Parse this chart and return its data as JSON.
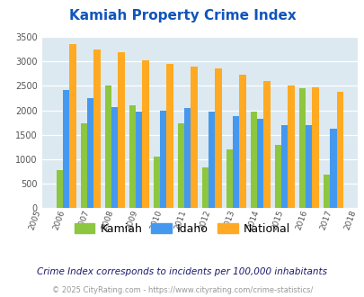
{
  "title": "Kamiah Property Crime Index",
  "years": [
    2005,
    2006,
    2007,
    2008,
    2009,
    2010,
    2011,
    2012,
    2013,
    2014,
    2015,
    2016,
    2017,
    2018
  ],
  "kamiah": [
    null,
    775,
    1725,
    2500,
    2100,
    1050,
    1725,
    825,
    1200,
    1975,
    1300,
    2450,
    680,
    null
  ],
  "idaho": [
    null,
    2425,
    2250,
    2075,
    1975,
    2000,
    2050,
    1975,
    1875,
    1825,
    1700,
    1700,
    1625,
    null
  ],
  "national": [
    null,
    3350,
    3250,
    3200,
    3025,
    2950,
    2900,
    2850,
    2725,
    2600,
    2500,
    2475,
    2375,
    null
  ],
  "kamiah_color": "#8dc63f",
  "idaho_color": "#4499ee",
  "national_color": "#ffaa22",
  "bg_color": "#dce9f0",
  "ylim": [
    0,
    3500
  ],
  "yticks": [
    0,
    500,
    1000,
    1500,
    2000,
    2500,
    3000,
    3500
  ],
  "subtitle": "Crime Index corresponds to incidents per 100,000 inhabitants",
  "footer": "© 2025 CityRating.com - https://www.cityrating.com/crime-statistics/",
  "title_color": "#1155bb",
  "subtitle_color": "#1a1a6e",
  "footer_color": "#999999",
  "legend_label_color": "#333333"
}
